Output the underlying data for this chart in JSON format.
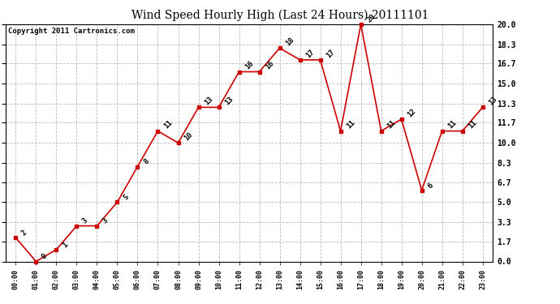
{
  "title": "Wind Speed Hourly High (Last 24 Hours) 20111101",
  "copyright": "Copyright 2011 Cartronics.com",
  "x_labels": [
    "00:00",
    "01:00",
    "02:00",
    "03:00",
    "04:00",
    "05:00",
    "06:00",
    "07:00",
    "08:00",
    "09:00",
    "10:00",
    "11:00",
    "12:00",
    "13:00",
    "14:00",
    "15:00",
    "16:00",
    "17:00",
    "18:00",
    "19:00",
    "20:00",
    "21:00",
    "22:00",
    "23:00"
  ],
  "y_values": [
    2,
    0,
    1,
    3,
    3,
    5,
    8,
    11,
    10,
    13,
    13,
    16,
    16,
    18,
    17,
    17,
    11,
    20,
    11,
    12,
    6,
    11,
    11,
    13
  ],
  "line_color": "#cc0000",
  "marker_color": "#cc0000",
  "marker_style": "s",
  "marker_size": 3,
  "line_width": 1.2,
  "y_ticks": [
    0.0,
    1.7,
    3.3,
    5.0,
    6.7,
    8.3,
    10.0,
    11.7,
    13.3,
    15.0,
    16.7,
    18.3,
    20.0
  ],
  "y_tick_labels": [
    "0.0",
    "1.7",
    "3.3",
    "5.0",
    "6.7",
    "8.3",
    "10.0",
    "11.7",
    "13.3",
    "15.0",
    "16.7",
    "18.3",
    "20.0"
  ],
  "ylim": [
    0.0,
    20.0
  ],
  "grid_color": "#bbbbbb",
  "grid_style": "--",
  "bg_color": "#ffffff",
  "title_fontsize": 10,
  "annotation_fontsize": 6.5,
  "copyright_fontsize": 6.5
}
